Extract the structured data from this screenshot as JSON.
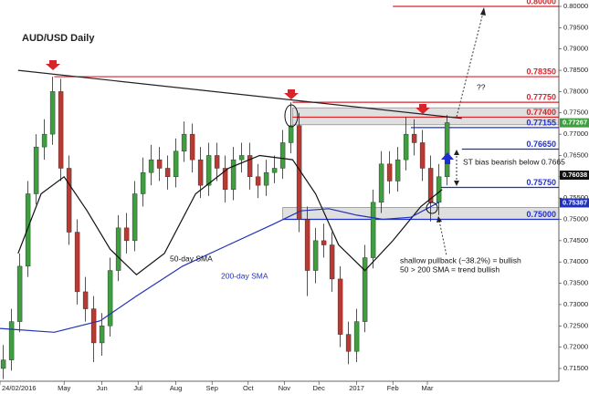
{
  "chart_data": {
    "type": "candlestick",
    "title": "AUD/USD Daily",
    "x": [
      2,
      7,
      12,
      17,
      22,
      27,
      32,
      37,
      42,
      47,
      52,
      57,
      62,
      67,
      72,
      77,
      82,
      87,
      92,
      97,
      102,
      107,
      112,
      117,
      122,
      127,
      132,
      137,
      142,
      147,
      152,
      157,
      162,
      167,
      172,
      177,
      182,
      187,
      192,
      197,
      202,
      207,
      212,
      217,
      222,
      227,
      232,
      237,
      242,
      247,
      252,
      257,
      262,
      267,
      272
    ],
    "open": [
      0.715,
      0.717,
      0.726,
      0.739,
      0.756,
      0.767,
      0.77,
      0.78,
      0.762,
      0.747,
      0.733,
      0.729,
      0.721,
      0.725,
      0.738,
      0.748,
      0.745,
      0.756,
      0.761,
      0.764,
      0.762,
      0.76,
      0.766,
      0.77,
      0.764,
      0.758,
      0.765,
      0.762,
      0.757,
      0.764,
      0.765,
      0.76,
      0.758,
      0.761,
      0.762,
      0.768,
      0.772,
      0.75,
      0.738,
      0.745,
      0.744,
      0.736,
      0.723,
      0.719,
      0.726,
      0.741,
      0.754,
      0.763,
      0.759,
      0.764,
      0.77,
      0.768,
      0.762,
      0.754,
      0.76
    ],
    "high": [
      0.7205,
      0.729,
      0.742,
      0.759,
      0.77,
      0.7735,
      0.7835,
      0.783,
      0.765,
      0.75,
      0.7365,
      0.732,
      0.728,
      0.741,
      0.751,
      0.7515,
      0.759,
      0.7645,
      0.7675,
      0.767,
      0.765,
      0.769,
      0.773,
      0.7725,
      0.767,
      0.768,
      0.768,
      0.765,
      0.767,
      0.768,
      0.768,
      0.763,
      0.764,
      0.765,
      0.771,
      0.7775,
      0.775,
      0.753,
      0.748,
      0.749,
      0.747,
      0.739,
      0.726,
      0.729,
      0.744,
      0.757,
      0.766,
      0.766,
      0.767,
      0.774,
      0.7735,
      0.771,
      0.765,
      0.763,
      0.7745
    ],
    "low": [
      0.7125,
      0.7145,
      0.7235,
      0.7365,
      0.7535,
      0.764,
      0.7675,
      0.759,
      0.744,
      0.73,
      0.726,
      0.7165,
      0.718,
      0.7225,
      0.7355,
      0.742,
      0.7425,
      0.753,
      0.758,
      0.759,
      0.757,
      0.7575,
      0.7635,
      0.761,
      0.755,
      0.7555,
      0.759,
      0.754,
      0.7545,
      0.761,
      0.757,
      0.755,
      0.7555,
      0.7585,
      0.7595,
      0.7655,
      0.747,
      0.732,
      0.735,
      0.741,
      0.733,
      0.72,
      0.716,
      0.7165,
      0.7235,
      0.7385,
      0.7515,
      0.756,
      0.7565,
      0.7615,
      0.765,
      0.759,
      0.7495,
      0.751,
      0.758
    ],
    "close": [
      0.717,
      0.726,
      0.739,
      0.756,
      0.767,
      0.77,
      0.78,
      0.762,
      0.747,
      0.733,
      0.729,
      0.721,
      0.725,
      0.738,
      0.748,
      0.745,
      0.756,
      0.761,
      0.764,
      0.762,
      0.76,
      0.766,
      0.77,
      0.764,
      0.758,
      0.765,
      0.762,
      0.757,
      0.764,
      0.765,
      0.76,
      0.758,
      0.761,
      0.762,
      0.768,
      0.772,
      0.75,
      0.738,
      0.745,
      0.744,
      0.736,
      0.723,
      0.719,
      0.726,
      0.741,
      0.754,
      0.763,
      0.759,
      0.764,
      0.77,
      0.768,
      0.762,
      0.754,
      0.76,
      0.7727
    ],
    "up_color": "#3f9e3f",
    "down_color": "#b83a32",
    "wick_color": "#2a2a2a",
    "lines": [
      {
        "name": "50-day SMA",
        "color": "#111111",
        "x": [
          11,
          25,
          39,
          53,
          67,
          83,
          100,
          119,
          139,
          158,
          178,
          192,
          206,
          222,
          239,
          256,
          269
        ],
        "values": [
          0.742,
          0.756,
          0.76,
          0.752,
          0.743,
          0.737,
          0.742,
          0.756,
          0.762,
          0.765,
          0.764,
          0.756,
          0.744,
          0.738,
          0.745,
          0.753,
          0.757
        ]
      },
      {
        "name": "200-day SMA",
        "color": "#2232b8",
        "x": [
          0,
          33,
          61,
          83,
          111,
          139,
          167,
          183,
          200,
          217,
          233,
          250,
          267
        ],
        "values": [
          0.7244,
          0.7235,
          0.7262,
          0.732,
          0.739,
          0.744,
          0.749,
          0.752,
          0.7525,
          0.751,
          0.75,
          0.7505,
          0.754
        ]
      }
    ],
    "trendline": {
      "color": "#222222",
      "x": [
        11,
        281
      ],
      "values": [
        0.785,
        0.7737
      ]
    },
    "levels": [
      {
        "value": 0.8,
        "label": "0.80000",
        "color": "#d9232a",
        "from": 239
      },
      {
        "value": 0.7835,
        "label": "0.78350",
        "color": "#d9232a",
        "from": 33
      },
      {
        "value": 0.7775,
        "label": "0.77750",
        "color": "#d9232a",
        "from": 178
      },
      {
        "value": 0.774,
        "label": "0.77400",
        "color": "#d9232a",
        "from": 178
      },
      {
        "value": 0.77155,
        "label": "0.77155",
        "color": "#1f2fcf",
        "from": 250
      },
      {
        "value": 0.7665,
        "label": "0.76650",
        "color": "#1f2fcf",
        "from": 281
      },
      {
        "value": 0.7575,
        "label": "0.75750",
        "color": "#1f2fcf",
        "from": 267
      },
      {
        "value": 0.75,
        "label": "0.75000",
        "color": "#1f2fcf",
        "from": 172
      }
    ],
    "zones": [
      {
        "from": 178,
        "low": 0.7722,
        "high": 0.7762
      },
      {
        "from": 172,
        "low": 0.75,
        "high": 0.7528
      }
    ],
    "price_markers": [
      {
        "value": 0.77267,
        "color": "#3f9e3f"
      },
      {
        "value": 0.76038,
        "color": "#111111"
      },
      {
        "value": 0.75387,
        "color": "#2232b8"
      }
    ],
    "annotations": [
      "??",
      "ST bias bearish below  0.7665",
      "shallow pullback (~38.2%) = bullish",
      "50 > 200 SMA = trend bullish"
    ],
    "xlim": [
      0,
      340
    ],
    "ylim": [
      0.712,
      0.8015
    ],
    "xticks": [
      {
        "value": 0,
        "label": "24/02/2016"
      },
      {
        "value": 39,
        "label": "May"
      },
      {
        "value": 62,
        "label": "Jun"
      },
      {
        "value": 84,
        "label": "Jul"
      },
      {
        "value": 107,
        "label": "Aug"
      },
      {
        "value": 129,
        "label": "Sep"
      },
      {
        "value": 151,
        "label": "Oct"
      },
      {
        "value": 173,
        "label": "Nov"
      },
      {
        "value": 194,
        "label": "Dec"
      },
      {
        "value": 217,
        "label": "2017"
      },
      {
        "value": 239,
        "label": "Feb"
      },
      {
        "value": 260,
        "label": "Mar"
      }
    ],
    "yticks": [
      {
        "value": 0.715,
        "label": "0.71500"
      },
      {
        "value": 0.72,
        "label": "0.72000"
      },
      {
        "value": 0.725,
        "label": "0.72500"
      },
      {
        "value": 0.73,
        "label": "0.73000"
      },
      {
        "value": 0.735,
        "label": "0.73500"
      },
      {
        "value": 0.74,
        "label": "0.74000"
      },
      {
        "value": 0.745,
        "label": "0.74500"
      },
      {
        "value": 0.75,
        "label": "0.75000"
      },
      {
        "value": 0.755,
        "label": "0.75500"
      },
      {
        "value": 0.76,
        "label": "0.76000"
      },
      {
        "value": 0.765,
        "label": "0.76500"
      },
      {
        "value": 0.77,
        "label": "0.77000"
      },
      {
        "value": 0.775,
        "label": "0.77500"
      },
      {
        "value": 0.78,
        "label": "0.78000"
      },
      {
        "value": 0.785,
        "label": "0.78500"
      },
      {
        "value": 0.79,
        "label": "0.79000"
      },
      {
        "value": 0.795,
        "label": "0.79500"
      },
      {
        "value": 0.8,
        "label": "0.80000"
      }
    ]
  }
}
